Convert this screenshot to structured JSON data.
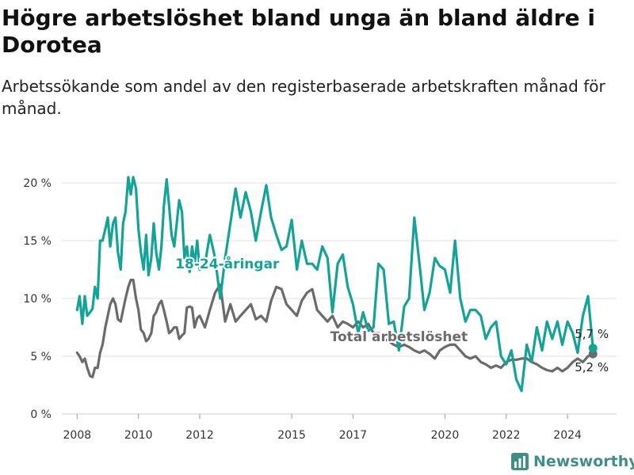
{
  "title": "Högre arbetslöshet bland unga än bland äldre i Dorotea",
  "subtitle": "Arbetssökande som andel av den registerbaserade arbetskraften månad för månad.",
  "brand": {
    "name": "Newsworthy",
    "color": "#3f8f86"
  },
  "chart_data": {
    "type": "line",
    "ylim": [
      0,
      20
    ],
    "xlim": [
      2007.5,
      2025.6
    ],
    "y_ticks": [
      0,
      5,
      10,
      15,
      20
    ],
    "y_tick_labels": [
      "0 %",
      "5 %",
      "10 %",
      "15 %",
      "20 %"
    ],
    "x_ticks": [
      2008,
      2010,
      2012,
      2015,
      2017,
      2020,
      2022,
      2024
    ],
    "x_tick_labels": [
      "2008",
      "2010",
      "2012",
      "2015",
      "2017",
      "2020",
      "2022",
      "2024"
    ],
    "grid": "horizontal",
    "legend": "inline labels",
    "series": [
      {
        "name": "18-24-åringar",
        "color": "#13a397",
        "end_label": "5,7 %",
        "x": [
          2008.0,
          2008.08,
          2008.17,
          2008.25,
          2008.33,
          2008.42,
          2008.5,
          2008.58,
          2008.67,
          2008.75,
          2008.83,
          2008.92,
          2009.0,
          2009.08,
          2009.17,
          2009.25,
          2009.33,
          2009.42,
          2009.5,
          2009.58,
          2009.67,
          2009.75,
          2009.83,
          2009.92,
          2010.0,
          2010.08,
          2010.17,
          2010.25,
          2010.33,
          2010.42,
          2010.5,
          2010.58,
          2010.67,
          2010.75,
          2010.83,
          2010.92,
          2011.0,
          2011.08,
          2011.17,
          2011.25,
          2011.33,
          2011.42,
          2011.5,
          2011.58,
          2011.67,
          2011.75,
          2011.83,
          2011.92,
          2012.0,
          2012.17,
          2012.33,
          2012.5,
          2012.67,
          2012.83,
          2013.0,
          2013.17,
          2013.33,
          2013.5,
          2013.67,
          2013.83,
          2014.0,
          2014.17,
          2014.33,
          2014.5,
          2014.67,
          2014.83,
          2015.0,
          2015.17,
          2015.33,
          2015.5,
          2015.67,
          2015.83,
          2016.0,
          2016.17,
          2016.33,
          2016.5,
          2016.67,
          2016.83,
          2017.0,
          2017.17,
          2017.33,
          2017.5,
          2017.67,
          2017.83,
          2018.0,
          2018.17,
          2018.33,
          2018.5,
          2018.67,
          2018.83,
          2019.0,
          2019.17,
          2019.33,
          2019.5,
          2019.67,
          2019.83,
          2020.0,
          2020.17,
          2020.33,
          2020.5,
          2020.67,
          2020.83,
          2021.0,
          2021.17,
          2021.33,
          2021.5,
          2021.67,
          2021.83,
          2022.0,
          2022.17,
          2022.33,
          2022.5,
          2022.67,
          2022.83,
          2023.0,
          2023.17,
          2023.33,
          2023.5,
          2023.67,
          2023.83,
          2024.0,
          2024.17,
          2024.33,
          2024.5,
          2024.67,
          2024.83
        ],
        "values": [
          9.0,
          10.2,
          7.8,
          10.2,
          8.5,
          8.8,
          9.1,
          11.0,
          10.0,
          15.0,
          15.0,
          16.0,
          17.0,
          14.5,
          16.5,
          17.0,
          14.0,
          12.5,
          16.5,
          17.5,
          20.5,
          19.0,
          20.5,
          19.5,
          16.0,
          14.0,
          12.5,
          15.5,
          12.0,
          13.5,
          16.5,
          14.0,
          12.5,
          14.5,
          18.0,
          20.3,
          18.0,
          15.5,
          14.5,
          16.5,
          18.5,
          17.5,
          13.5,
          14.5,
          12.3,
          14.5,
          13.0,
          15.0,
          12.5,
          13.0,
          15.5,
          13.5,
          10.0,
          13.5,
          16.5,
          19.5,
          17.0,
          19.2,
          17.5,
          15.0,
          17.5,
          19.8,
          17.0,
          15.5,
          14.2,
          14.5,
          16.8,
          12.5,
          15.0,
          13.0,
          13.0,
          12.5,
          14.5,
          13.5,
          8.8,
          13.0,
          13.8,
          11.0,
          9.5,
          7.0,
          8.8,
          7.2,
          7.5,
          13.0,
          12.5,
          7.8,
          8.0,
          5.5,
          9.3,
          10.0,
          17.0,
          13.0,
          9.0,
          10.5,
          13.5,
          12.8,
          12.5,
          10.5,
          15.0,
          10.0,
          8.0,
          9.0,
          9.0,
          8.5,
          6.5,
          7.5,
          8.0,
          5.0,
          4.3,
          5.5,
          3.0,
          2.0,
          6.0,
          4.5,
          7.5,
          5.5,
          8.0,
          6.5,
          8.0,
          6.0,
          8.0,
          7.0,
          5.3,
          8.5,
          10.2,
          5.7
        ]
      },
      {
        "name": "Total arbetslöshet",
        "color": "#6b6b6b",
        "end_label": "5,2 %",
        "x": [
          2008.0,
          2008.08,
          2008.17,
          2008.25,
          2008.33,
          2008.42,
          2008.5,
          2008.58,
          2008.67,
          2008.75,
          2008.83,
          2008.92,
          2009.0,
          2009.08,
          2009.17,
          2009.25,
          2009.33,
          2009.42,
          2009.5,
          2009.58,
          2009.67,
          2009.75,
          2009.83,
          2009.92,
          2010.0,
          2010.08,
          2010.17,
          2010.25,
          2010.33,
          2010.42,
          2010.5,
          2010.58,
          2010.67,
          2010.75,
          2010.83,
          2010.92,
          2011.0,
          2011.08,
          2011.17,
          2011.25,
          2011.33,
          2011.42,
          2011.5,
          2011.58,
          2011.67,
          2011.75,
          2011.83,
          2011.92,
          2012.0,
          2012.17,
          2012.33,
          2012.5,
          2012.67,
          2012.83,
          2013.0,
          2013.17,
          2013.33,
          2013.5,
          2013.67,
          2013.83,
          2014.0,
          2014.17,
          2014.33,
          2014.5,
          2014.67,
          2014.83,
          2015.0,
          2015.17,
          2015.33,
          2015.5,
          2015.67,
          2015.83,
          2016.0,
          2016.17,
          2016.33,
          2016.5,
          2016.67,
          2016.83,
          2017.0,
          2017.17,
          2017.33,
          2017.5,
          2017.67,
          2017.83,
          2018.0,
          2018.17,
          2018.33,
          2018.5,
          2018.67,
          2018.83,
          2019.0,
          2019.17,
          2019.33,
          2019.5,
          2019.67,
          2019.83,
          2020.0,
          2020.17,
          2020.33,
          2020.5,
          2020.67,
          2020.83,
          2021.0,
          2021.17,
          2021.33,
          2021.5,
          2021.67,
          2021.83,
          2022.0,
          2022.17,
          2022.33,
          2022.5,
          2022.67,
          2022.83,
          2023.0,
          2023.17,
          2023.33,
          2023.5,
          2023.67,
          2023.83,
          2024.0,
          2024.17,
          2024.33,
          2024.5,
          2024.67,
          2024.83
        ],
        "values": [
          5.3,
          5.0,
          4.5,
          4.8,
          4.0,
          3.3,
          3.2,
          4.0,
          4.0,
          5.3,
          6.0,
          7.5,
          8.5,
          9.5,
          10.0,
          9.5,
          8.2,
          8.0,
          9.0,
          10.0,
          11.0,
          11.6,
          11.6,
          10.0,
          9.0,
          7.3,
          7.0,
          6.3,
          6.5,
          7.0,
          8.5,
          8.8,
          9.5,
          9.8,
          9.0,
          8.0,
          7.0,
          7.2,
          7.5,
          7.5,
          6.5,
          6.8,
          7.0,
          9.2,
          9.3,
          9.2,
          7.5,
          8.3,
          8.5,
          7.5,
          9.0,
          10.5,
          11.2,
          8.0,
          9.5,
          8.0,
          8.5,
          9.0,
          9.5,
          8.2,
          8.5,
          8.0,
          9.8,
          11.0,
          10.8,
          9.5,
          9.0,
          8.5,
          9.8,
          10.5,
          10.8,
          9.0,
          8.5,
          8.0,
          8.5,
          7.5,
          8.0,
          7.8,
          7.5,
          8.0,
          7.5,
          7.8,
          7.0,
          7.0,
          6.5,
          6.3,
          6.0,
          5.8,
          6.0,
          5.8,
          5.5,
          5.3,
          5.5,
          5.2,
          4.8,
          5.5,
          5.8,
          6.0,
          6.0,
          5.5,
          5.0,
          4.8,
          5.0,
          4.5,
          4.3,
          4.0,
          4.2,
          4.0,
          4.5,
          4.7,
          4.7,
          4.8,
          4.8,
          4.5,
          4.3,
          4.0,
          3.8,
          3.7,
          4.0,
          3.7,
          4.0,
          4.5,
          4.8,
          4.5,
          5.0,
          5.2
        ]
      }
    ]
  }
}
